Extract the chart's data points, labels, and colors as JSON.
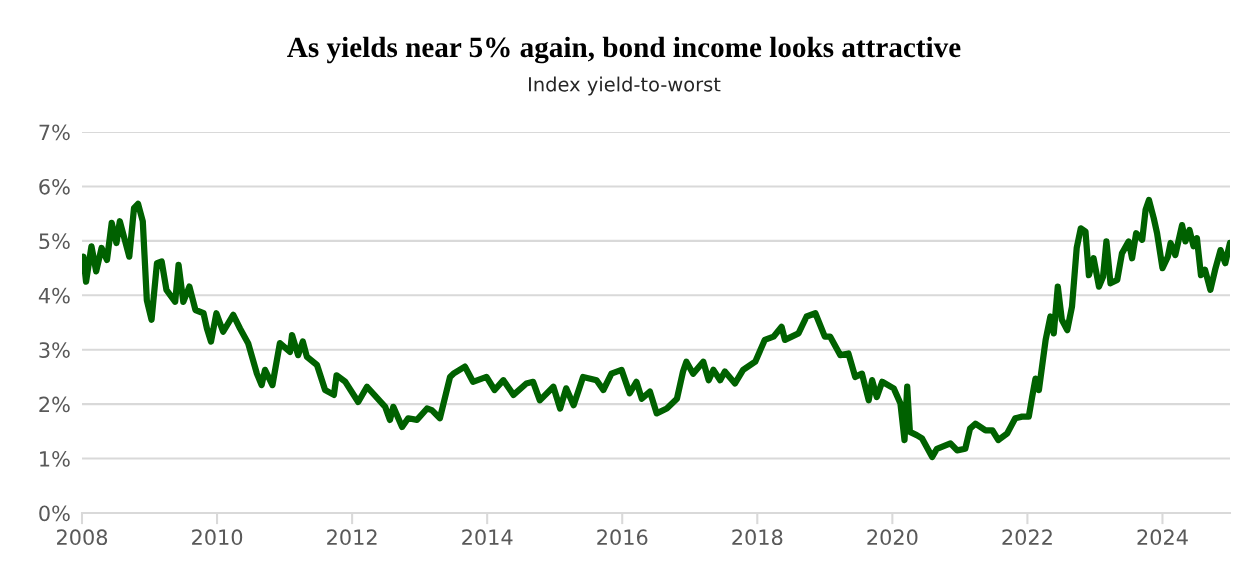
{
  "chart_data": {
    "type": "line",
    "title": "As yields near 5% again, bond income looks attractive",
    "subtitle": "Index yield-to-worst",
    "x": [
      2008.02,
      2008.06,
      2008.14,
      2008.21,
      2008.29,
      2008.37,
      2008.44,
      2008.51,
      2008.56,
      2008.7,
      2008.77,
      2008.83,
      2008.9,
      2008.96,
      2009.03,
      2009.11,
      2009.18,
      2009.25,
      2009.38,
      2009.43,
      2009.5,
      2009.59,
      2009.68,
      2009.8,
      2009.85,
      2009.91,
      2009.99,
      2010.09,
      2010.24,
      2010.34,
      2010.46,
      2010.59,
      2010.66,
      2010.71,
      2010.82,
      2010.93,
      2011.08,
      2011.11,
      2011.2,
      2011.27,
      2011.33,
      2011.48,
      2011.6,
      2011.73,
      2011.77,
      2011.9,
      2012.09,
      2012.22,
      2012.49,
      2012.56,
      2012.61,
      2012.74,
      2012.83,
      2012.96,
      2013.11,
      2013.18,
      2013.3,
      2013.45,
      2013.5,
      2013.67,
      2013.79,
      2013.99,
      2014.11,
      2014.24,
      2014.39,
      2014.58,
      2014.68,
      2014.78,
      2014.98,
      2015.08,
      2015.17,
      2015.28,
      2015.42,
      2015.62,
      2015.72,
      2015.84,
      2015.99,
      2016.11,
      2016.21,
      2016.29,
      2016.41,
      2016.51,
      2016.66,
      2016.81,
      2016.9,
      2016.95,
      2017.05,
      2017.2,
      2017.28,
      2017.35,
      2017.45,
      2017.52,
      2017.67,
      2017.79,
      2017.97,
      2018.11,
      2018.24,
      2018.36,
      2018.41,
      2018.61,
      2018.73,
      2018.86,
      2019.0,
      2019.08,
      2019.23,
      2019.35,
      2019.45,
      2019.55,
      2019.65,
      2019.7,
      2019.77,
      2019.85,
      2020.02,
      2020.12,
      2020.18,
      2020.22,
      2020.26,
      2020.36,
      2020.44,
      2020.59,
      2020.66,
      2020.86,
      2020.96,
      2021.08,
      2021.15,
      2021.23,
      2021.38,
      2021.48,
      2021.57,
      2021.7,
      2021.82,
      2021.92,
      2022.02,
      2022.07,
      2022.12,
      2022.17,
      2022.27,
      2022.34,
      2022.39,
      2022.45,
      2022.51,
      2022.59,
      2022.66,
      2022.73,
      2022.79,
      2022.86,
      2022.91,
      2022.98,
      2023.06,
      2023.12,
      2023.17,
      2023.23,
      2023.33,
      2023.4,
      2023.5,
      2023.55,
      2023.61,
      2023.7,
      2023.75,
      2023.8,
      2023.87,
      2023.92,
      2024.0,
      2024.08,
      2024.12,
      2024.19,
      2024.29,
      2024.34,
      2024.4,
      2024.46,
      2024.51,
      2024.57,
      2024.63,
      2024.71,
      2024.78,
      2024.86,
      2024.93,
      2025.0
    ],
    "series": [
      {
        "color": "#006100",
        "values": [
          4.71,
          4.25,
          4.9,
          4.44,
          4.87,
          4.65,
          5.33,
          4.96,
          5.36,
          4.71,
          5.6,
          5.68,
          5.36,
          3.91,
          3.55,
          4.59,
          4.62,
          4.1,
          3.88,
          4.56,
          3.88,
          4.16,
          3.73,
          3.67,
          3.39,
          3.15,
          3.67,
          3.33,
          3.64,
          3.39,
          3.12,
          2.56,
          2.35,
          2.63,
          2.35,
          3.12,
          2.96,
          3.27,
          2.9,
          3.15,
          2.87,
          2.72,
          2.26,
          2.17,
          2.53,
          2.41,
          2.04,
          2.32,
          1.95,
          1.71,
          1.95,
          1.58,
          1.74,
          1.71,
          1.92,
          1.89,
          1.74,
          2.5,
          2.56,
          2.69,
          2.41,
          2.5,
          2.26,
          2.44,
          2.17,
          2.38,
          2.41,
          2.07,
          2.32,
          1.92,
          2.29,
          1.98,
          2.5,
          2.44,
          2.26,
          2.56,
          2.63,
          2.2,
          2.41,
          2.1,
          2.23,
          1.83,
          1.92,
          2.1,
          2.6,
          2.78,
          2.56,
          2.78,
          2.44,
          2.63,
          2.44,
          2.6,
          2.38,
          2.63,
          2.78,
          3.18,
          3.24,
          3.42,
          3.18,
          3.3,
          3.61,
          3.67,
          3.24,
          3.24,
          2.9,
          2.93,
          2.5,
          2.56,
          2.07,
          2.44,
          2.13,
          2.41,
          2.29,
          2.01,
          1.34,
          2.32,
          1.49,
          1.43,
          1.37,
          1.03,
          1.18,
          1.28,
          1.15,
          1.18,
          1.55,
          1.64,
          1.52,
          1.52,
          1.34,
          1.46,
          1.74,
          1.77,
          1.77,
          2.13,
          2.47,
          2.26,
          3.18,
          3.61,
          3.3,
          4.16,
          3.55,
          3.36,
          3.79,
          4.87,
          5.23,
          5.17,
          4.37,
          4.68,
          4.16,
          4.34,
          4.99,
          4.22,
          4.28,
          4.77,
          4.99,
          4.68,
          5.14,
          5.02,
          5.57,
          5.75,
          5.42,
          5.14,
          4.5,
          4.71,
          4.96,
          4.74,
          5.29,
          4.99,
          5.2,
          4.9,
          5.05,
          4.37,
          4.47,
          4.1,
          4.47,
          4.83,
          4.59,
          4.96
        ]
      }
    ],
    "xlim": [
      2008,
      2025
    ],
    "xticks": [
      2008,
      2010,
      2012,
      2014,
      2016,
      2018,
      2020,
      2022,
      2024
    ],
    "ylim": [
      0,
      7
    ],
    "yticks": [
      {
        "value": 0,
        "label": "0%"
      },
      {
        "value": 1,
        "label": "1%"
      },
      {
        "value": 2,
        "label": "2%"
      },
      {
        "value": 3,
        "label": "3%"
      },
      {
        "value": 4,
        "label": "4%"
      },
      {
        "value": 5,
        "label": "5%"
      },
      {
        "value": 6,
        "label": "6%"
      },
      {
        "value": 7,
        "label": "7%"
      }
    ],
    "grid": "y",
    "marker": "none",
    "line_style": "solid"
  }
}
